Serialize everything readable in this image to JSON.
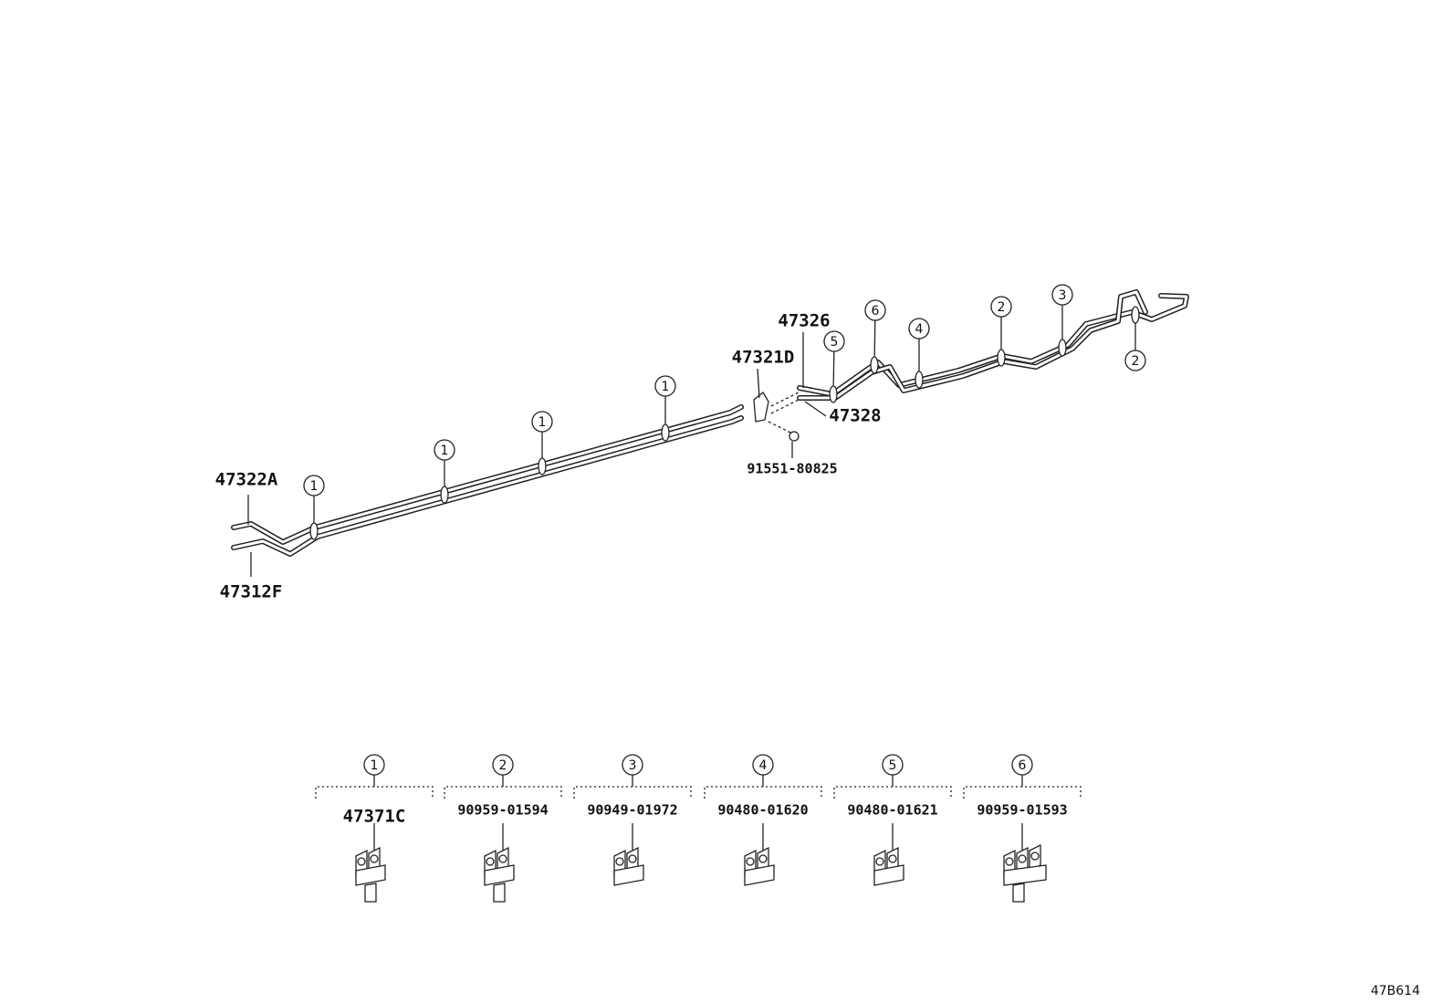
{
  "callouts": [
    {
      "part": "47322A"
    },
    {
      "part": "47312F"
    },
    {
      "part": "47326"
    },
    {
      "part": "47321D"
    },
    {
      "part": "47328"
    },
    {
      "part": "91551-80825"
    }
  ],
  "clip_markers": [
    "1",
    "1",
    "1",
    "1",
    "5",
    "6",
    "4",
    "2",
    "3",
    "2"
  ],
  "legend": [
    {
      "number": "1",
      "part": "47371C"
    },
    {
      "number": "2",
      "part": "90959-01594"
    },
    {
      "number": "3",
      "part": "90949-01972"
    },
    {
      "number": "4",
      "part": "90480-01620"
    },
    {
      "number": "5",
      "part": "90480-01621"
    },
    {
      "number": "6",
      "part": "90959-01593"
    }
  ],
  "diagram_id": "47B614"
}
